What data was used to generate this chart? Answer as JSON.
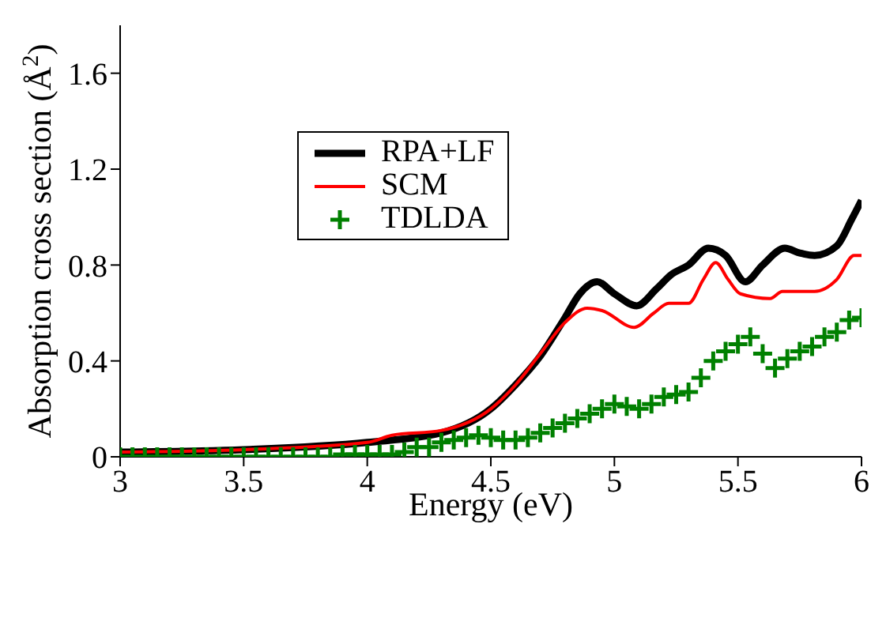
{
  "chart_data": {
    "type": "line",
    "xlabel": "Energy (eV)",
    "ylabel": "Absorption cross section (Å$^{2}$)",
    "xlim": [
      3,
      6
    ],
    "xticks": [
      3,
      3.5,
      4,
      4.5,
      5,
      5.5,
      6
    ],
    "ylim": [
      0,
      1.8
    ],
    "yticks": [
      0,
      0.4,
      0.8,
      1.2,
      1.6
    ],
    "legend": "top left",
    "marker": "none",
    "line_style": "solid",
    "grid": false,
    "series": [
      {
        "name": "RPA+LF",
        "color": "#000000",
        "x": [
          3,
          3.5,
          4,
          4.3,
          4.5,
          4.6,
          4.7,
          4.8,
          4.86,
          4.93,
          5.0,
          5.09,
          5.17,
          5.23,
          5.3,
          5.38,
          5.45,
          5.53,
          5.6,
          5.69,
          5.75,
          5.81,
          5.9,
          5.96,
          6
        ],
        "values": [
          0.02,
          0.03,
          0.06,
          0.1,
          0.2,
          0.3,
          0.42,
          0.58,
          0.68,
          0.73,
          0.68,
          0.63,
          0.7,
          0.76,
          0.8,
          0.87,
          0.84,
          0.73,
          0.8,
          0.87,
          0.85,
          0.84,
          0.88,
          0.99,
          1.07
        ]
      },
      {
        "name": "SCM",
        "color": "#ff0000",
        "x": [
          3,
          3.5,
          4,
          4.1,
          4.3,
          4.5,
          4.6,
          4.7,
          4.8,
          4.89,
          4.95,
          5.08,
          5.16,
          5.22,
          5.3,
          5.36,
          5.41,
          5.46,
          5.51,
          5.63,
          5.68,
          5.81,
          5.9,
          5.97,
          6
        ],
        "values": [
          0.02,
          0.03,
          0.06,
          0.09,
          0.11,
          0.2,
          0.3,
          0.43,
          0.56,
          0.62,
          0.61,
          0.54,
          0.6,
          0.64,
          0.64,
          0.74,
          0.81,
          0.74,
          0.68,
          0.66,
          0.69,
          0.69,
          0.74,
          0.84,
          0.84
        ]
      },
      {
        "name": "TDLDA",
        "type": "scatter",
        "marker": "cross",
        "color": "#008000",
        "x": [
          3,
          3.05,
          3.1,
          3.15,
          3.2,
          3.25,
          3.3,
          3.35,
          3.4,
          3.45,
          3.5,
          3.55,
          3.6,
          3.65,
          3.7,
          3.75,
          3.8,
          3.85,
          3.9,
          3.95,
          4,
          4.05,
          4.1,
          4.15,
          4.2,
          4.25,
          4.3,
          4.35,
          4.4,
          4.45,
          4.5,
          4.55,
          4.6,
          4.65,
          4.7,
          4.75,
          4.8,
          4.85,
          4.9,
          4.95,
          5,
          5.05,
          5.1,
          5.15,
          5.2,
          5.25,
          5.3,
          5.35,
          5.4,
          5.45,
          5.5,
          5.55,
          5.6,
          5.65,
          5.7,
          5.75,
          5.8,
          5.85,
          5.9,
          5.95,
          6
        ],
        "values": [
          0,
          0,
          0,
          0,
          0,
          0,
          0,
          0,
          0,
          0,
          0,
          0,
          0,
          0,
          0,
          0,
          0,
          0,
          0.01,
          0.01,
          0.01,
          0.01,
          0.01,
          0.02,
          0.04,
          0.04,
          0.06,
          0.07,
          0.08,
          0.09,
          0.08,
          0.07,
          0.07,
          0.08,
          0.1,
          0.12,
          0.14,
          0.16,
          0.18,
          0.2,
          0.22,
          0.21,
          0.2,
          0.22,
          0.25,
          0.26,
          0.27,
          0.33,
          0.4,
          0.44,
          0.47,
          0.5,
          0.43,
          0.37,
          0.41,
          0.44,
          0.46,
          0.5,
          0.52,
          0.57,
          0.58
        ]
      }
    ]
  }
}
